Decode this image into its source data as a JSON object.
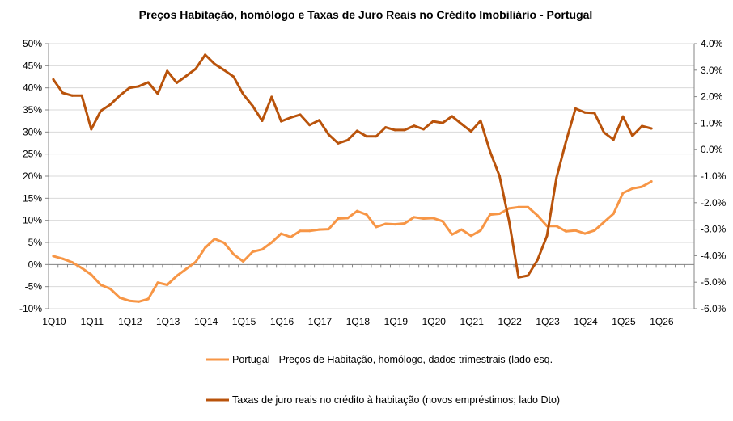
{
  "chart_data": {
    "type": "line",
    "title": "Preços Habitação, homólogo e Taxas de Juro Reais no Crédito Imobiliário  -  Portugal",
    "x_tick_labels": [
      "1Q10",
      "1Q11",
      "1Q12",
      "1Q13",
      "1Q14",
      "1Q15",
      "1Q16",
      "1Q17",
      "1Q18",
      "1Q19",
      "1Q20",
      "1Q21",
      "1Q22",
      "1Q23",
      "1Q24",
      "1Q25",
      "1Q26"
    ],
    "x_start": "1Q10",
    "n_categories": 68,
    "left_axis": {
      "ylim": [
        -10,
        50
      ],
      "step": 5,
      "tick_labels": [
        "50%",
        "45%",
        "40%",
        "35%",
        "30%",
        "25%",
        "20%",
        "15%",
        "10%",
        "5%",
        "0%",
        "-5%",
        "-10%"
      ]
    },
    "right_axis": {
      "ylim": [
        -6,
        4
      ],
      "step": 1,
      "tick_labels": [
        "4.0%",
        "3.0%",
        "2.0%",
        "1.0%",
        "0.0%",
        "-1.0%",
        "-2.0%",
        "-3.0%",
        "-4.0%",
        "-5.0%",
        "-6.0%"
      ]
    },
    "grid": true,
    "legend_position": "bottom",
    "series": [
      {
        "name": "Portugal - Preços de Habitação, homólogo, dados trimestrais (lado esq.",
        "axis": "left",
        "color": "#F79646",
        "values": [
          1.9,
          1.3,
          0.5,
          -0.8,
          -2.3,
          -4.6,
          -5.5,
          -7.5,
          -8.2,
          -8.4,
          -7.8,
          -4.1,
          -4.6,
          -2.6,
          -1.0,
          0.6,
          3.8,
          5.8,
          4.9,
          2.3,
          0.7,
          2.9,
          3.4,
          5.0,
          7.0,
          6.2,
          7.6,
          7.6,
          7.9,
          8.0,
          10.4,
          10.5,
          12.1,
          11.3,
          8.5,
          9.2,
          9.1,
          9.3,
          10.7,
          10.4,
          10.5,
          9.8,
          6.8,
          7.9,
          6.5,
          7.7,
          11.3,
          11.5,
          12.7,
          13.0,
          13.0,
          11.1,
          8.7,
          8.7,
          7.5,
          7.7,
          7.0,
          7.7,
          9.6,
          11.5,
          16.2,
          17.2,
          17.6,
          18.8
        ]
      },
      {
        "name": "Taxas de juro reais no crédito à habitação (novos empréstimos; lado Dto)",
        "axis": "right",
        "color": "#B9530B",
        "values": [
          2.65,
          2.14,
          2.04,
          2.04,
          0.77,
          1.46,
          1.7,
          2.04,
          2.33,
          2.39,
          2.54,
          2.11,
          2.97,
          2.52,
          2.78,
          3.05,
          3.58,
          3.23,
          3.0,
          2.75,
          2.09,
          1.65,
          1.09,
          1.99,
          1.07,
          1.21,
          1.32,
          0.93,
          1.11,
          0.57,
          0.24,
          0.36,
          0.71,
          0.5,
          0.5,
          0.84,
          0.74,
          0.74,
          0.9,
          0.77,
          1.07,
          1.01,
          1.26,
          0.97,
          0.69,
          1.09,
          -0.07,
          -0.99,
          -2.69,
          -4.82,
          -4.75,
          -4.16,
          -3.25,
          -1.06,
          0.31,
          1.55,
          1.4,
          1.38,
          0.65,
          0.38,
          1.25,
          0.52,
          0.89,
          0.8
        ]
      }
    ]
  }
}
